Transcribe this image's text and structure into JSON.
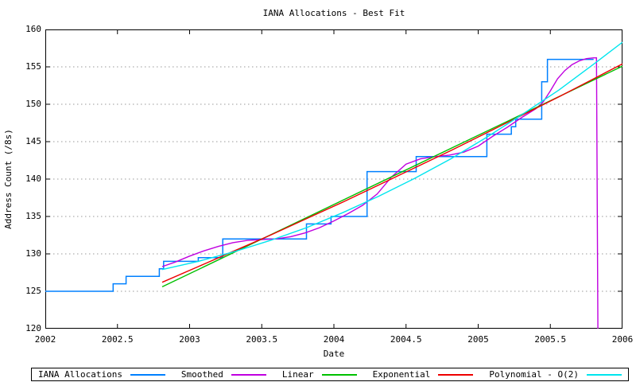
{
  "chart_data": {
    "type": "line",
    "title": "IANA Allocations - Best Fit",
    "xlabel": "Date",
    "ylabel": "Address Count (/8s)",
    "xlim": [
      2002,
      2006
    ],
    "ylim": [
      120,
      160
    ],
    "xticks": [
      2002,
      2002.5,
      2003,
      2003.5,
      2004,
      2004.5,
      2005,
      2005.5,
      2006
    ],
    "xtick_labels": [
      "2002",
      "2002.5",
      "2003",
      "2003.5",
      "2004",
      "2004.5",
      "2005",
      "2005.5",
      "2006"
    ],
    "yticks": [
      120,
      125,
      130,
      135,
      140,
      145,
      150,
      155,
      160
    ],
    "ytick_labels": [
      "120",
      "125",
      "130",
      "135",
      "140",
      "145",
      "150",
      "155",
      "160"
    ],
    "grid": "horizontal-dashed",
    "grid_color": "#9a9a9a",
    "border_color": "#000000",
    "legend_position": "bottom",
    "series": [
      {
        "name": "IANA Allocations",
        "color": "#0080ff",
        "mode": "steps",
        "width": 1.5,
        "points": [
          [
            2002.0,
            125
          ],
          [
            2002.47,
            126
          ],
          [
            2002.56,
            127
          ],
          [
            2002.79,
            128
          ],
          [
            2002.82,
            129
          ],
          [
            2003.06,
            129.5
          ],
          [
            2003.23,
            132
          ],
          [
            2003.81,
            134
          ],
          [
            2003.98,
            135
          ],
          [
            2004.23,
            141
          ],
          [
            2004.57,
            143
          ],
          [
            2005.06,
            146
          ],
          [
            2005.23,
            147
          ],
          [
            2005.26,
            148
          ],
          [
            2005.44,
            153
          ],
          [
            2005.48,
            156
          ],
          [
            2005.8,
            156
          ]
        ]
      },
      {
        "name": "Smoothed",
        "color": "#c000e0",
        "mode": "line",
        "width": 1.4,
        "points": [
          [
            2002.81,
            128.3
          ],
          [
            2002.9,
            128.9
          ],
          [
            2003.0,
            129.7
          ],
          [
            2003.1,
            130.4
          ],
          [
            2003.2,
            131.0
          ],
          [
            2003.3,
            131.5
          ],
          [
            2003.4,
            131.8
          ],
          [
            2003.5,
            131.9
          ],
          [
            2003.6,
            132.0
          ],
          [
            2003.7,
            132.3
          ],
          [
            2003.8,
            132.8
          ],
          [
            2003.9,
            133.5
          ],
          [
            2004.0,
            134.4
          ],
          [
            2004.1,
            135.4
          ],
          [
            2004.2,
            136.5
          ],
          [
            2004.3,
            138.0
          ],
          [
            2004.4,
            140.3
          ],
          [
            2004.5,
            142.0
          ],
          [
            2004.6,
            142.7
          ],
          [
            2004.7,
            143.0
          ],
          [
            2004.8,
            143.2
          ],
          [
            2004.9,
            143.6
          ],
          [
            2005.0,
            144.4
          ],
          [
            2005.1,
            145.7
          ],
          [
            2005.2,
            146.9
          ],
          [
            2005.3,
            148.2
          ],
          [
            2005.4,
            149.4
          ],
          [
            2005.45,
            150.3
          ],
          [
            2005.5,
            151.8
          ],
          [
            2005.55,
            153.4
          ],
          [
            2005.6,
            154.5
          ],
          [
            2005.65,
            155.3
          ],
          [
            2005.7,
            155.8
          ],
          [
            2005.75,
            156.1
          ],
          [
            2005.8,
            156.2
          ],
          [
            2005.82,
            156.2
          ],
          [
            2005.83,
            119.5
          ]
        ]
      },
      {
        "name": "Linear",
        "color": "#00c000",
        "mode": "line",
        "width": 1.4,
        "points": [
          [
            2002.81,
            125.6
          ],
          [
            2006.0,
            155.1
          ]
        ]
      },
      {
        "name": "Exponential",
        "color": "#ee0000",
        "mode": "line",
        "width": 1.4,
        "points": [
          [
            2002.81,
            126.2
          ],
          [
            2003.06,
            128.3
          ],
          [
            2003.31,
            130.4
          ],
          [
            2003.56,
            132.5
          ],
          [
            2003.81,
            134.7
          ],
          [
            2004.06,
            136.9
          ],
          [
            2004.31,
            139.2
          ],
          [
            2004.56,
            141.5
          ],
          [
            2004.81,
            143.8
          ],
          [
            2005.06,
            146.2
          ],
          [
            2005.31,
            148.6
          ],
          [
            2005.56,
            151.0
          ],
          [
            2005.81,
            153.5
          ],
          [
            2006.0,
            155.4
          ]
        ]
      },
      {
        "name": "Polynomial - O(2)",
        "color": "#00e5ee",
        "mode": "line",
        "width": 1.4,
        "points": [
          [
            2002.81,
            127.9
          ],
          [
            2003.06,
            129.0
          ],
          [
            2003.31,
            130.3
          ],
          [
            2003.56,
            131.8
          ],
          [
            2003.81,
            133.5
          ],
          [
            2004.06,
            135.5
          ],
          [
            2004.31,
            137.7
          ],
          [
            2004.56,
            140.1
          ],
          [
            2004.81,
            142.7
          ],
          [
            2005.06,
            145.6
          ],
          [
            2005.31,
            148.7
          ],
          [
            2005.56,
            151.9
          ],
          [
            2005.81,
            155.5
          ],
          [
            2006.0,
            158.3
          ]
        ]
      }
    ]
  }
}
